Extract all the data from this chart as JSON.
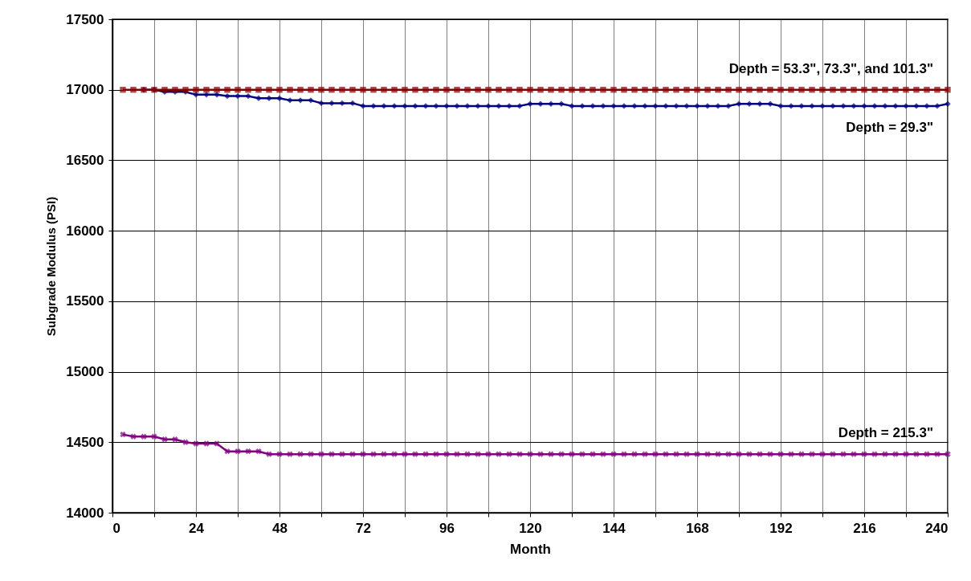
{
  "chart_data": {
    "type": "line",
    "xlabel": "Month",
    "ylabel": "Subgrade Modulus (PSI)",
    "xlim": [
      0,
      240
    ],
    "ylim": [
      14000,
      17500
    ],
    "xticks": [
      0,
      {
        "value": 12,
        "label": null
      },
      24,
      {
        "value": 36,
        "label": null
      },
      48,
      {
        "value": 60,
        "label": null
      },
      72,
      {
        "value": 84,
        "label": null
      },
      96,
      {
        "value": 108,
        "label": null
      },
      120,
      {
        "value": 132,
        "label": null
      },
      144,
      {
        "value": 156,
        "label": null
      },
      168,
      {
        "value": 180,
        "label": null
      },
      192,
      {
        "value": 204,
        "label": null
      },
      216,
      {
        "value": 228,
        "label": null
      },
      240
    ],
    "yticks": [
      14000,
      14500,
      15000,
      15500,
      16000,
      16500,
      17000,
      17500
    ],
    "grid": true,
    "legend": false,
    "x": [
      3,
      6,
      9,
      12,
      15,
      18,
      21,
      24,
      27,
      30,
      33,
      36,
      39,
      42,
      45,
      48,
      51,
      54,
      57,
      60,
      63,
      66,
      69,
      72,
      75,
      78,
      81,
      84,
      87,
      90,
      93,
      96,
      99,
      102,
      105,
      108,
      111,
      114,
      117,
      120,
      123,
      126,
      129,
      132,
      135,
      138,
      141,
      144,
      147,
      150,
      153,
      156,
      159,
      162,
      165,
      168,
      171,
      174,
      177,
      180,
      183,
      186,
      189,
      192,
      195,
      198,
      201,
      204,
      207,
      210,
      213,
      216,
      219,
      222,
      225,
      228,
      231,
      234,
      237,
      240
    ],
    "series": [
      {
        "name": "Depth = 29.3\"",
        "color": "#000080",
        "marker": "diamond",
        "values": [
          null,
          null,
          17000,
          17000,
          16985,
          16985,
          16985,
          16965,
          16965,
          16965,
          16955,
          16955,
          16955,
          16940,
          16940,
          16940,
          16925,
          16925,
          16925,
          16905,
          16905,
          16905,
          16905,
          16885,
          16885,
          16885,
          16885,
          16885,
          16885,
          16885,
          16885,
          16885,
          16885,
          16885,
          16885,
          16885,
          16885,
          16885,
          16885,
          16900,
          16900,
          16900,
          16900,
          16885,
          16885,
          16885,
          16885,
          16885,
          16885,
          16885,
          16885,
          16885,
          16885,
          16885,
          16885,
          16885,
          16885,
          16885,
          16885,
          16900,
          16900,
          16900,
          16900,
          16885,
          16885,
          16885,
          16885,
          16885,
          16885,
          16885,
          16885,
          16885,
          16885,
          16885,
          16885,
          16885,
          16885,
          16885,
          16885,
          16900
        ]
      },
      {
        "name": "Depth = 53.3\", 73.3\", and 101.3\"",
        "color": "#800000",
        "marker": "square",
        "values": [
          17000,
          17000,
          17000,
          17000,
          17000,
          17000,
          17000,
          17000,
          17000,
          17000,
          17000,
          17000,
          17000,
          17000,
          17000,
          17000,
          17000,
          17000,
          17000,
          17000,
          17000,
          17000,
          17000,
          17000,
          17000,
          17000,
          17000,
          17000,
          17000,
          17000,
          17000,
          17000,
          17000,
          17000,
          17000,
          17000,
          17000,
          17000,
          17000,
          17000,
          17000,
          17000,
          17000,
          17000,
          17000,
          17000,
          17000,
          17000,
          17000,
          17000,
          17000,
          17000,
          17000,
          17000,
          17000,
          17000,
          17000,
          17000,
          17000,
          17000,
          17000,
          17000,
          17000,
          17000,
          17000,
          17000,
          17000,
          17000,
          17000,
          17000,
          17000,
          17000,
          17000,
          17000,
          17000,
          17000,
          17000,
          17000,
          17000,
          17000
        ]
      },
      {
        "name": "Depth = 215.3\"",
        "color": "#800080",
        "marker": "cross",
        "values": [
          14555,
          14540,
          14540,
          14540,
          14520,
          14520,
          14500,
          14490,
          14490,
          14490,
          14435,
          14435,
          14435,
          14435,
          14415,
          14415,
          14415,
          14415,
          14415,
          14415,
          14415,
          14415,
          14415,
          14415,
          14415,
          14415,
          14415,
          14415,
          14415,
          14415,
          14415,
          14415,
          14415,
          14415,
          14415,
          14415,
          14415,
          14415,
          14415,
          14415,
          14415,
          14415,
          14415,
          14415,
          14415,
          14415,
          14415,
          14415,
          14415,
          14415,
          14415,
          14415,
          14415,
          14415,
          14415,
          14415,
          14415,
          14415,
          14415,
          14415,
          14415,
          14415,
          14415,
          14415,
          14415,
          14415,
          14415,
          14415,
          14415,
          14415,
          14415,
          14415,
          14415,
          14415,
          14415,
          14415,
          14415,
          14415,
          14415,
          14415
        ]
      }
    ]
  }
}
